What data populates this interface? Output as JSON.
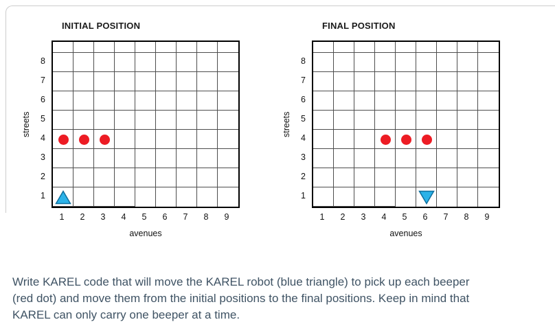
{
  "grid": {
    "columns": 9,
    "rows": 8
  },
  "colors": {
    "beeper": "#ed1c24",
    "robot_fill": "#2bb2e8",
    "robot_stroke": "#0e6f9e",
    "grid_line": "#4d4d4d",
    "grid_border": "#000000",
    "text": "#3f5364"
  },
  "figures": [
    {
      "title": "INITIAL POSITION",
      "y_axis_label": "streets",
      "x_axis_label": "avenues",
      "street_labels": [
        "8",
        "7",
        "6",
        "5",
        "4",
        "3",
        "2",
        "1"
      ],
      "avenue_labels": [
        "1",
        "2",
        "3",
        "4",
        "5",
        "6",
        "7",
        "8",
        "9"
      ],
      "beepers": [
        {
          "avenue": 1,
          "street": 4
        },
        {
          "avenue": 2,
          "street": 4
        },
        {
          "avenue": 3,
          "street": 4
        }
      ],
      "robot": {
        "avenue": 1,
        "street": 1,
        "direction": "up"
      }
    },
    {
      "title": "FINAL POSITION",
      "y_axis_label": "streets",
      "x_axis_label": "avenues",
      "street_labels": [
        "8",
        "7",
        "6",
        "5",
        "4",
        "3",
        "2",
        "1"
      ],
      "avenue_labels": [
        "1",
        "2",
        "3",
        "4",
        "5",
        "6",
        "7",
        "8",
        "9"
      ],
      "beepers": [
        {
          "avenue": 4,
          "street": 4
        },
        {
          "avenue": 5,
          "street": 4
        },
        {
          "avenue": 6,
          "street": 4
        }
      ],
      "robot": {
        "avenue": 6,
        "street": 1,
        "direction": "down"
      }
    }
  ],
  "question_text": "Write KAREL code that will move the KAREL robot (blue triangle) to pick up each beeper (red dot) and move them from the initial positions to the final positions. Keep in mind that KAREL can only carry one beeper at a time."
}
